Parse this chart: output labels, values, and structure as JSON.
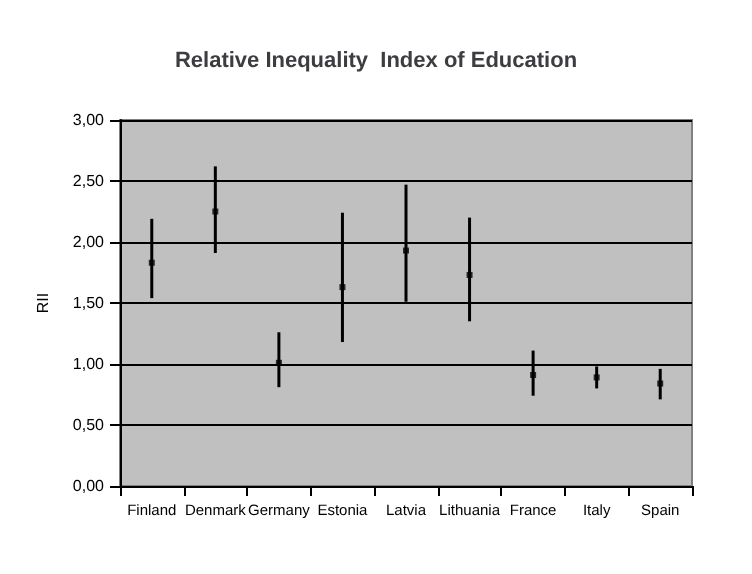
{
  "chart_data": {
    "type": "scatter",
    "title": "Relative Inequality  Index of Education",
    "ylabel": "RII",
    "categories": [
      "Finland",
      "Denmark",
      "Germany",
      "Estonia",
      "Latvia",
      "Lithuania",
      "France",
      "Italy",
      "Spain"
    ],
    "series": [
      {
        "color": "#000000",
        "values": [
          1.83,
          2.25,
          1.01,
          1.63,
          1.93,
          1.73,
          0.91,
          0.89,
          0.84
        ],
        "errors": [
          [
            1.54,
            2.19
          ],
          [
            1.91,
            2.62
          ],
          [
            0.81,
            1.26
          ],
          [
            1.18,
            2.24
          ],
          [
            1.51,
            2.47
          ],
          [
            1.35,
            2.2
          ],
          [
            0.74,
            1.11
          ],
          [
            0.8,
            0.98
          ],
          [
            0.71,
            0.96
          ]
        ]
      }
    ],
    "ylim": [
      0,
      3
    ],
    "yticks": [
      {
        "value": 0,
        "label": "0,00"
      },
      {
        "value": 0.5,
        "label": "0,50"
      },
      {
        "value": 1,
        "label": "1,00"
      },
      {
        "value": 1.5,
        "label": "1,50"
      },
      {
        "value": 2,
        "label": "2,00"
      },
      {
        "value": 2.5,
        "label": "2,50"
      },
      {
        "value": 3,
        "label": "3,00"
      }
    ],
    "grid": "y",
    "marker": "square"
  }
}
